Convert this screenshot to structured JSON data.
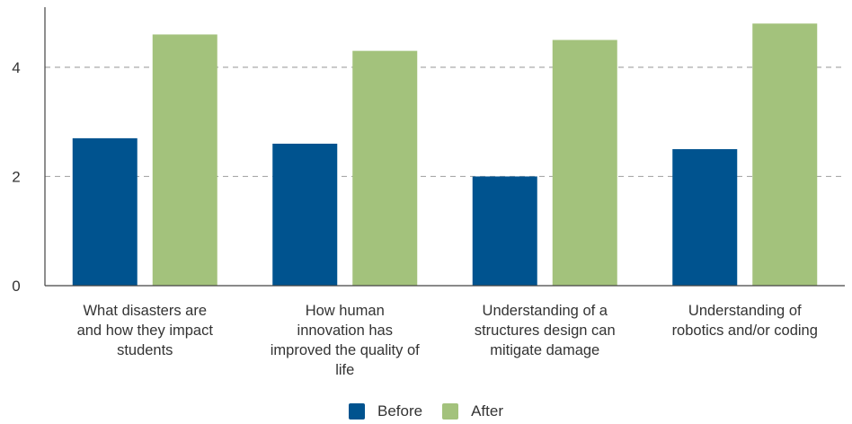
{
  "chart_data": {
    "type": "bar",
    "categories": [
      "What disasters are and how they impact students",
      "How human innovation has improved the quality of life",
      "Understanding of a structures design can mitigate damage",
      "Understanding of robotics and/or coding"
    ],
    "category_lines": [
      [
        "What disasters are",
        "and how they impact",
        "students"
      ],
      [
        "How human",
        "innovation has",
        "improved the quality of",
        "life"
      ],
      [
        "Understanding of a",
        "structures design can",
        "mitigate damage"
      ],
      [
        "Understanding of",
        "robotics and/or coding"
      ]
    ],
    "series": [
      {
        "name": "Before",
        "color": "#00538f",
        "values": [
          2.7,
          2.6,
          2.0,
          2.5
        ]
      },
      {
        "name": "After",
        "color": "#a3c27c",
        "values": [
          4.6,
          4.3,
          4.5,
          4.8
        ]
      }
    ],
    "yticks": [
      0,
      2,
      4
    ],
    "ylim": [
      0,
      5.1
    ],
    "grid": true,
    "legend_position": "bottom-center",
    "title": "",
    "xlabel": "",
    "ylabel": ""
  },
  "legend": {
    "before_label": "Before",
    "after_label": "After",
    "before_color": "#00538f",
    "after_color": "#a3c27c"
  }
}
